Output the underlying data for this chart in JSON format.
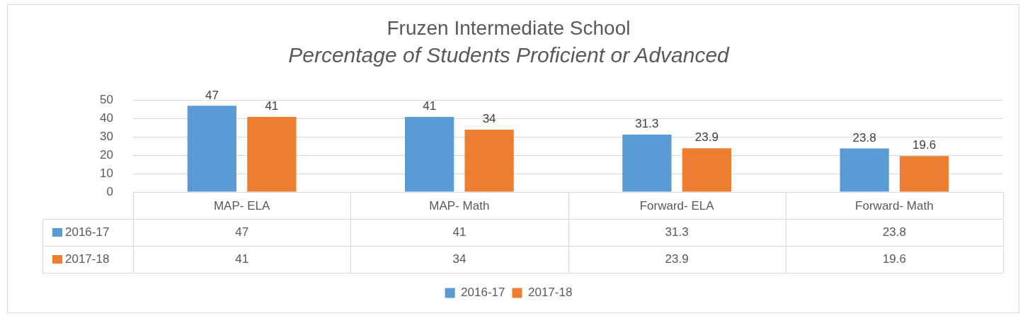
{
  "chart_data": {
    "type": "bar",
    "title": "Fruzen Intermediate School",
    "subtitle": "Percentage of Students Proficient or Advanced",
    "categories": [
      "MAP- ELA",
      "MAP- Math",
      "Forward- ELA",
      "Forward- Math"
    ],
    "series": [
      {
        "name": "2016-17",
        "color": "#5b9bd5",
        "values": [
          47,
          41,
          31.3,
          23.8
        ],
        "value_labels": [
          "47",
          "41",
          "31.3",
          "23.8"
        ]
      },
      {
        "name": "2017-18",
        "color": "#ed7d31",
        "values": [
          41,
          34,
          23.9,
          19.6
        ],
        "value_labels": [
          "41",
          "34",
          "23.9",
          "19.6"
        ]
      }
    ],
    "ylim": [
      0,
      50
    ],
    "yticks": [
      0,
      10,
      20,
      30,
      40,
      50
    ],
    "annotations": [
      "47",
      "41",
      "31.3",
      "23.8",
      "41",
      "34",
      "23.9",
      "19.6"
    ],
    "grid": "y",
    "legend": "bottom"
  }
}
